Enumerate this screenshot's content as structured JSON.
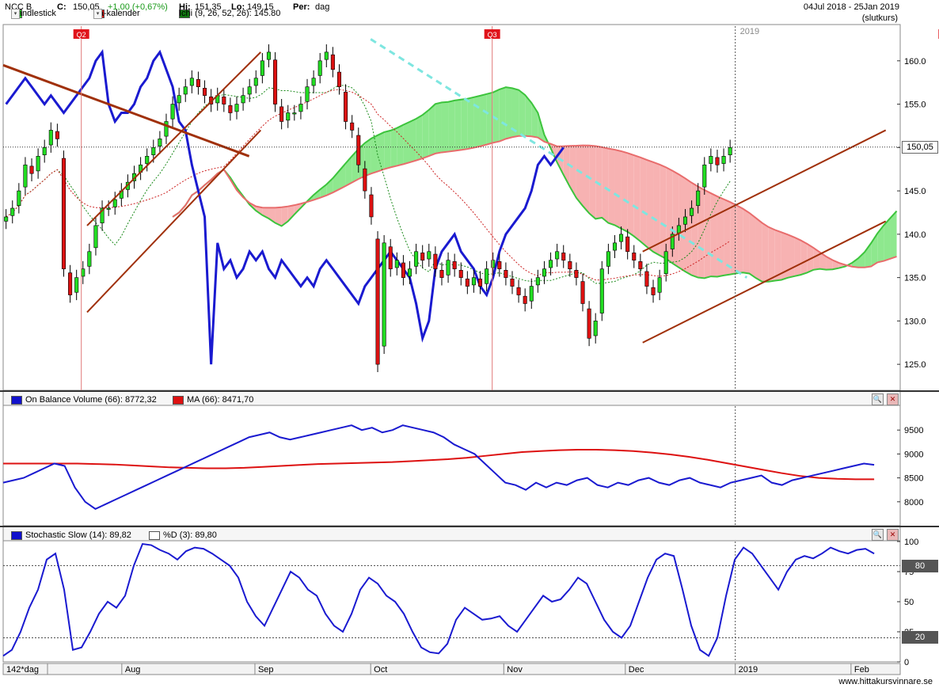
{
  "header": {
    "symbol": "NCC B",
    "close_label": "C:",
    "close_value": "150,05",
    "change": "+1,00 (+0,67%)",
    "hi_label": "Hi:",
    "hi_value": "151,35",
    "lo_label": "Lo:",
    "lo_value": "149,15",
    "per_label": "Per:",
    "per_value": "dag",
    "date_range": "04Jul 2018 - 25Jan 2019",
    "mode": "(slutkurs)"
  },
  "legend_main": [
    {
      "label": "Candlestick",
      "color": "#22dd22"
    },
    {
      "label": "Fa-kalender",
      "color": "#dd1111"
    },
    {
      "label": "Ichi (9, 26, 52, 26): 145.80",
      "color": "#117711"
    }
  ],
  "legend_obv": [
    {
      "label": "On Balance Volume (66): 8772,32",
      "color": "#1111cc"
    },
    {
      "label": "MA (66): 8471,70",
      "color": "#dd1111"
    }
  ],
  "legend_stoch": [
    {
      "label": "Stochastic Slow (14): 89,82",
      "color": "#1111cc"
    },
    {
      "label": "%D (3): 89,80",
      "color": "#ffffff"
    }
  ],
  "markers": [
    {
      "label": "Q2",
      "day": 13
    },
    {
      "label": "Q3",
      "day": 84
    },
    {
      "label": "Q",
      "day": 162
    }
  ],
  "year_label": "2019",
  "x_axis": {
    "start_label": "142*dag",
    "months": [
      {
        "label": "Aug",
        "day": 20
      },
      {
        "label": "Sep",
        "day": 43
      },
      {
        "label": "Oct",
        "day": 63
      },
      {
        "label": "Nov",
        "day": 86
      },
      {
        "label": "Dec",
        "day": 107
      },
      {
        "label": "2019",
        "day": 126
      },
      {
        "label": "Feb",
        "day": 146
      }
    ]
  },
  "last_price_label": "150,05",
  "stoch_levels": [
    "80",
    "20"
  ],
  "site": "www.hittakursvinnare.se",
  "chart_data": [
    {
      "type": "candlestick",
      "title": "NCC B",
      "ylim": [
        122,
        164
      ],
      "yticks": [
        "125.0",
        "130.0",
        "135.0",
        "140.0",
        "145.0",
        "150.0",
        "155.0",
        "160.0"
      ],
      "ytick_values": [
        125,
        130,
        135,
        140,
        145,
        150,
        155,
        160
      ],
      "x_days": 155,
      "closes": [
        142,
        143,
        145,
        148,
        147,
        149,
        150,
        152,
        151,
        136,
        133,
        135,
        136,
        138,
        141,
        143,
        143,
        144,
        145,
        146,
        147,
        148,
        149,
        150,
        151,
        153,
        155,
        156,
        157,
        158,
        157,
        156,
        155,
        156,
        155,
        154,
        155,
        156,
        157,
        158,
        160,
        161,
        155,
        153,
        154,
        154,
        155,
        157,
        158,
        160,
        161,
        159,
        157,
        153,
        152,
        148,
        145,
        142,
        125,
        139,
        136,
        137,
        135,
        136,
        138,
        137,
        138,
        136,
        135,
        137,
        136,
        135,
        134,
        135,
        134,
        136,
        137,
        136,
        135,
        134,
        133,
        132,
        134,
        135,
        136,
        137,
        138,
        137,
        136,
        135,
        132,
        128,
        130,
        136,
        138,
        139,
        140,
        138,
        137,
        136,
        134,
        133,
        135,
        138,
        140,
        141,
        142,
        143,
        145,
        148,
        149,
        148,
        149,
        150
      ],
      "volume_note": "",
      "obv_ylim": [
        7500,
        10000
      ],
      "obv_yticks": [
        "8000",
        "8500",
        "9000",
        "9500"
      ],
      "obv_ytick_values": [
        8000,
        8500,
        9000,
        9500
      ],
      "obv": [
        8400,
        8450,
        8500,
        8600,
        8700,
        8800,
        8750,
        8300,
        8000,
        7850,
        7950,
        8050,
        8150,
        8250,
        8350,
        8450,
        8550,
        8650,
        8750,
        8850,
        8950,
        9050,
        9150,
        9250,
        9350,
        9400,
        9450,
        9350,
        9300,
        9350,
        9400,
        9450,
        9500,
        9550,
        9600,
        9500,
        9550,
        9450,
        9500,
        9600,
        9550,
        9500,
        9450,
        9350,
        9200,
        9100,
        9000,
        8800,
        8600,
        8400,
        8350,
        8250,
        8400,
        8300,
        8400,
        8350,
        8450,
        8500,
        8350,
        8300,
        8400,
        8350,
        8450,
        8500,
        8400,
        8350,
        8450,
        8500,
        8400,
        8350,
        8300,
        8400,
        8450,
        8500,
        8550,
        8400,
        8350,
        8450,
        8500,
        8550,
        8600,
        8650,
        8700,
        8750,
        8800,
        8772
      ],
      "obv_ma": [
        8800,
        8800,
        8800,
        8800,
        8800,
        8790,
        8780,
        8760,
        8740,
        8720,
        8710,
        8700,
        8700,
        8710,
        8730,
        8750,
        8770,
        8790,
        8800,
        8810,
        8820,
        8830,
        8850,
        8870,
        8890,
        8920,
        8960,
        9000,
        9040,
        9060,
        9080,
        9090,
        9090,
        9080,
        9060,
        9030,
        8990,
        8940,
        8880,
        8810,
        8740,
        8670,
        8600,
        8540,
        8500,
        8480,
        8470,
        8471
      ],
      "stoch_ylim": [
        0,
        100
      ],
      "stoch_yticks": [
        "0",
        "25",
        "50",
        "75",
        "100"
      ],
      "stoch_ytick_values": [
        0,
        25,
        50,
        75,
        100
      ],
      "stoch": [
        5,
        10,
        25,
        45,
        60,
        85,
        90,
        60,
        10,
        12,
        25,
        40,
        50,
        45,
        55,
        80,
        98,
        97,
        93,
        90,
        85,
        92,
        95,
        94,
        90,
        85,
        80,
        70,
        50,
        38,
        30,
        45,
        60,
        75,
        70,
        60,
        55,
        40,
        30,
        25,
        40,
        60,
        70,
        65,
        55,
        50,
        40,
        25,
        12,
        8,
        7,
        15,
        35,
        45,
        40,
        35,
        36,
        38,
        30,
        25,
        35,
        45,
        55,
        50,
        52,
        60,
        70,
        65,
        50,
        35,
        25,
        20,
        30,
        50,
        70,
        85,
        90,
        88,
        60,
        30,
        10,
        5,
        20,
        55,
        85,
        95,
        90,
        80,
        70,
        60,
        75,
        85,
        88,
        86,
        90,
        95,
        92,
        90,
        93,
        94,
        90
      ]
    }
  ]
}
